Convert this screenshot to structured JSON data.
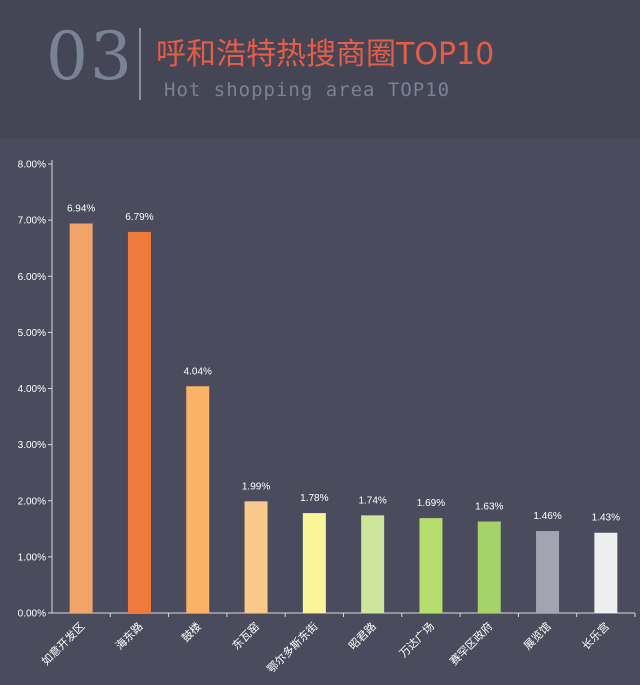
{
  "header": {
    "number": "03",
    "title": "呼和浩特热搜商圈TOP10",
    "subtitle": "Hot shopping area TOP10"
  },
  "chart_data": {
    "type": "bar",
    "title": "",
    "xlabel": "",
    "ylabel": "",
    "ylim": [
      0,
      8
    ],
    "yticks": [
      "0.00%",
      "1.00%",
      "2.00%",
      "3.00%",
      "4.00%",
      "5.00%",
      "6.00%",
      "7.00%",
      "8.00%"
    ],
    "categories": [
      "如意开发区",
      "海东路",
      "鼓楼",
      "东瓦窑",
      "鄂尔多斯东街",
      "昭君路",
      "万达广场",
      "赛罕区政府",
      "展览馆",
      "长乐宫"
    ],
    "values": [
      6.94,
      6.79,
      4.04,
      1.99,
      1.78,
      1.74,
      1.69,
      1.63,
      1.46,
      1.43
    ],
    "labels": [
      "6.94%",
      "6.79%",
      "4.04%",
      "1.99%",
      "1.78%",
      "1.74%",
      "1.69%",
      "1.63%",
      "1.46%",
      "1.43%"
    ],
    "colors": [
      "#f0a469",
      "#f07a3c",
      "#fbb166",
      "#f9c98c",
      "#fbf59a",
      "#cfe59b",
      "#b6de6e",
      "#a5d26a",
      "#a2a5b1",
      "#eeeeee"
    ],
    "grid": false
  }
}
